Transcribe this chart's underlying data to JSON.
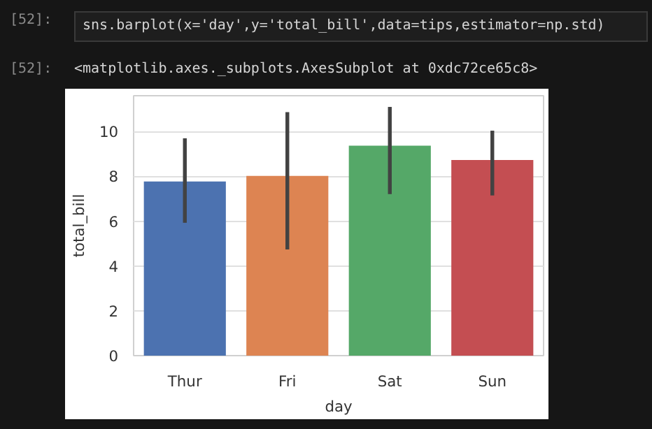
{
  "chart_data": {
    "type": "bar",
    "xlabel": "day",
    "ylabel": "total_bill",
    "categories": [
      "Thur",
      "Fri",
      "Sat",
      "Sun"
    ],
    "values": [
      7.77,
      8.02,
      9.37,
      8.73
    ],
    "colors": [
      "#4c72b0",
      "#dd8452",
      "#55a868",
      "#c44e52"
    ],
    "errors": [
      [
        5.93,
        9.7
      ],
      [
        4.74,
        10.87
      ],
      [
        7.21,
        11.1
      ],
      [
        7.15,
        10.04
      ]
    ],
    "ylim": [
      0,
      11.6
    ],
    "yticks": [
      0,
      2,
      4,
      6,
      8,
      10
    ],
    "grid": "y",
    "annotations": [
      "[52]:",
      "sns.barplot(x='day',y='total_bill',data=tips,estimator=np.std)",
      "[52]:",
      "<matplotlib.axes._subplots.AxesSubplot at 0xdc72ce65c8>"
    ]
  }
}
